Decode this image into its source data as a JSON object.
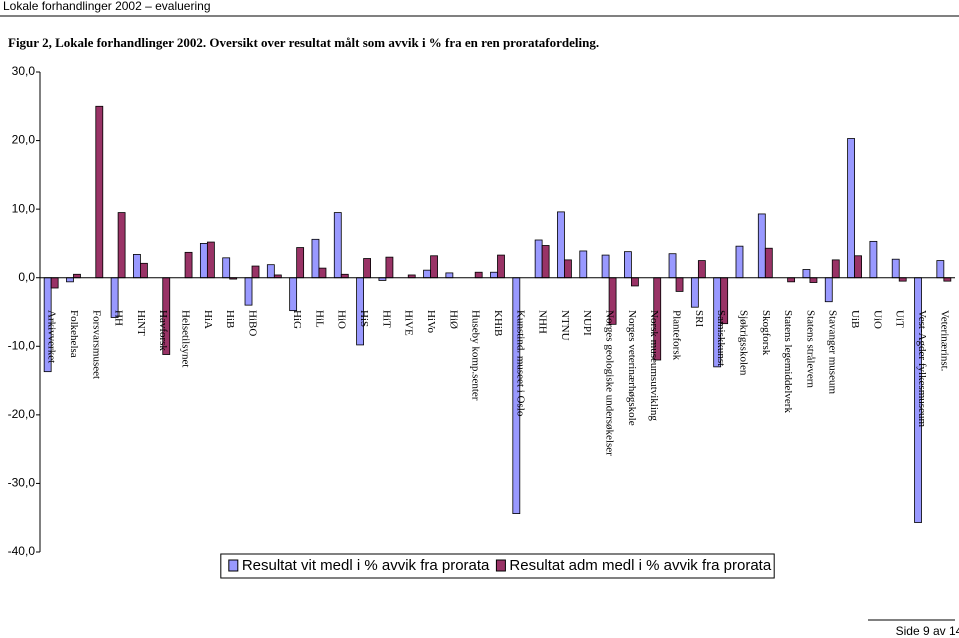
{
  "header": "Lokale forhandlinger 2002 – evaluering",
  "caption": "Figur 2, Lokale forhandlinger 2002. Oversikt over resultat målt som avvik i % fra en ren prorata­fordeling.",
  "chart_data": {
    "type": "bar",
    "categories": [
      "Arkivverket",
      "Folkehelsa",
      "Forsvarsmuseet",
      "HH",
      "HiNT",
      "Havforsk",
      "Helsetilsynet",
      "HiA",
      "HiB",
      "HiBO",
      null,
      "HiG",
      "HiL",
      "HiO",
      "HiS",
      "HiT",
      "HiVE",
      "HiVo",
      "HiØ",
      "Huseby komp.senter",
      "KHiB",
      "Kunstind. museet i Oslo",
      "NHH",
      "NTNU",
      "NUPI",
      "Norges geologiske undersøkelser",
      "Norges veterinærhøgskole",
      "Norsk museumsutvikling",
      "Planteforsk",
      "SRI",
      "Samiskkunst",
      "Sjøkrigsskolen",
      "Skogforsk",
      "Statens legemiddelverk",
      "Statens strålevern",
      "Stavanger museum",
      "UiB",
      "UiO",
      "UiT",
      "Vest-Agder fylkesmuseum",
      "Veterinærinst."
    ],
    "series": [
      {
        "name": "Resultat vit medl i % avvik fra prorata",
        "color": "#9999ff",
        "values": [
          -13.7,
          -0.6,
          0,
          -5.8,
          3.4,
          0,
          0,
          5.0,
          2.9,
          -4.0,
          1.9,
          -4.8,
          5.6,
          9.5,
          -9.8,
          -0.4,
          0,
          1.1,
          0.7,
          0,
          0.8,
          -34.4,
          5.5,
          9.6,
          3.9,
          3.3,
          3.8,
          0,
          3.5,
          -4.3,
          -13.0,
          4.6,
          9.3,
          0,
          1.2,
          -3.5,
          20.3,
          5.3,
          2.7,
          -35.7,
          2.5
        ]
      },
      {
        "name": "Resultat adm medl i % avvik fra prorata",
        "color": "#993366",
        "values": [
          -1.5,
          0.5,
          25.0,
          9.5,
          2.1,
          -11.2,
          3.7,
          5.2,
          -0.2,
          1.7,
          0.4,
          4.4,
          1.4,
          0.5,
          2.8,
          3.0,
          0.4,
          3.2,
          0,
          0.8,
          3.3,
          0,
          4.7,
          2.6,
          0,
          -6.8,
          -1.2,
          -12.0,
          -2.0,
          2.5,
          -6.7,
          0,
          4.3,
          -0.6,
          -0.7,
          2.6,
          3.2,
          0,
          -0.5,
          0,
          -0.5
        ]
      }
    ],
    "ylim": [
      -40,
      30
    ],
    "yticks": [
      {
        "value": -40,
        "label": "-40,0"
      },
      {
        "value": -30,
        "label": "-30,0"
      },
      {
        "value": -20,
        "label": "-20,0"
      },
      {
        "value": -10,
        "label": "-10,0"
      },
      {
        "value": 0,
        "label": "0,0"
      },
      {
        "value": 10,
        "label": "10,0"
      },
      {
        "value": 20,
        "label": "20,0"
      },
      {
        "value": 30,
        "label": "30,0"
      }
    ],
    "legend": "bottom"
  },
  "footer": "Side 9 av 14"
}
